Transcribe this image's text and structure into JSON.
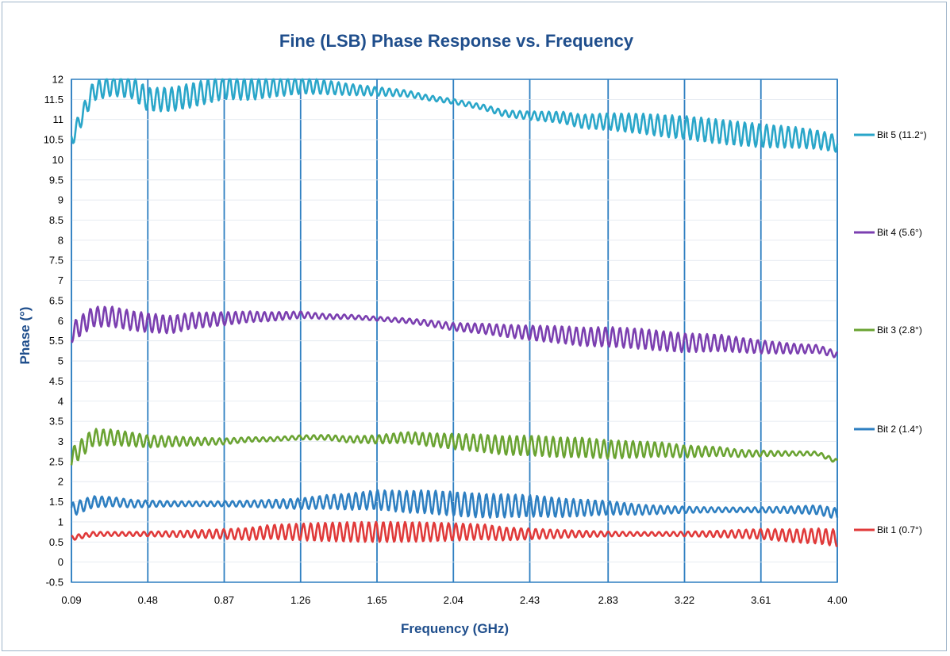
{
  "chart_data": {
    "type": "line",
    "title": "Fine (LSB) Phase Response vs. Frequency",
    "xlabel": "Frequency (GHz)",
    "ylabel": "Phase (°)",
    "xlim": [
      0.09,
      4.0
    ],
    "ylim": [
      -0.5,
      12
    ],
    "x_ticks": [
      "0.09",
      "0.48",
      "0.87",
      "1.26",
      "1.65",
      "2.04",
      "2.43",
      "2.83",
      "3.22",
      "3.61",
      "4.00"
    ],
    "y_ticks": [
      "-0.5",
      "0",
      "0.5",
      "1",
      "1.5",
      "2",
      "2.5",
      "3",
      "3.5",
      "4",
      "4.5",
      "5",
      "5.5",
      "6",
      "6.5",
      "7",
      "7.5",
      "8",
      "8.5",
      "9",
      "9.5",
      "10",
      "10.5",
      "11",
      "11.5",
      "12"
    ],
    "grid": "vertical",
    "legend_position": "right",
    "series": [
      {
        "name": "Bit 5 (11.2°)",
        "color": "#2aa6c9",
        "x": [
          0.09,
          0.2,
          0.3,
          0.4,
          0.48,
          0.6,
          0.7,
          0.87,
          1.0,
          1.1,
          1.26,
          1.4,
          1.5,
          1.65,
          1.8,
          1.9,
          2.04,
          2.2,
          2.3,
          2.43,
          2.6,
          2.7,
          2.83,
          3.0,
          3.1,
          3.22,
          3.4,
          3.5,
          3.61,
          3.8,
          3.9,
          4.0
        ],
        "y": [
          10.5,
          11.7,
          11.85,
          11.8,
          11.5,
          11.5,
          11.6,
          11.8,
          11.75,
          11.8,
          11.85,
          11.8,
          11.75,
          11.7,
          11.65,
          11.55,
          11.45,
          11.3,
          11.15,
          11.1,
          11.05,
          10.95,
          10.95,
          10.9,
          10.85,
          10.8,
          10.7,
          10.65,
          10.6,
          10.55,
          10.5,
          10.4
        ],
        "ripple": 0.3
      },
      {
        "name": "Bit 4 (5.6°)",
        "color": "#7b3fb0",
        "x": [
          0.09,
          0.2,
          0.3,
          0.4,
          0.48,
          0.6,
          0.7,
          0.87,
          1.0,
          1.1,
          1.26,
          1.4,
          1.5,
          1.65,
          1.8,
          1.9,
          2.04,
          2.2,
          2.3,
          2.43,
          2.6,
          2.7,
          2.83,
          3.0,
          3.1,
          3.22,
          3.4,
          3.5,
          3.61,
          3.8,
          3.9,
          4.0
        ],
        "y": [
          5.7,
          6.1,
          6.1,
          6.0,
          5.95,
          5.9,
          6.0,
          6.05,
          6.1,
          6.1,
          6.15,
          6.1,
          6.1,
          6.05,
          6.0,
          5.95,
          5.85,
          5.8,
          5.75,
          5.7,
          5.65,
          5.6,
          5.6,
          5.55,
          5.5,
          5.45,
          5.45,
          5.4,
          5.35,
          5.3,
          5.3,
          5.15
        ],
        "ripple": 0.25
      },
      {
        "name": "Bit 3 (2.8°)",
        "color": "#6aa332",
        "x": [
          0.09,
          0.2,
          0.3,
          0.4,
          0.48,
          0.6,
          0.7,
          0.87,
          1.0,
          1.1,
          1.26,
          1.4,
          1.5,
          1.65,
          1.8,
          1.9,
          2.04,
          2.2,
          2.3,
          2.43,
          2.6,
          2.7,
          2.83,
          3.0,
          3.1,
          3.22,
          3.4,
          3.5,
          3.61,
          3.8,
          3.9,
          4.0
        ],
        "y": [
          2.6,
          3.1,
          3.1,
          3.05,
          3.0,
          3.0,
          3.0,
          3.0,
          3.05,
          3.05,
          3.1,
          3.1,
          3.05,
          3.05,
          3.1,
          3.05,
          3.0,
          2.95,
          2.9,
          2.9,
          2.85,
          2.85,
          2.8,
          2.8,
          2.8,
          2.75,
          2.75,
          2.7,
          2.7,
          2.7,
          2.7,
          2.5
        ],
        "ripple": 0.25
      },
      {
        "name": "Bit 2 (1.4°)",
        "color": "#2e7fc1",
        "x": [
          0.09,
          0.2,
          0.3,
          0.4,
          0.48,
          0.6,
          0.7,
          0.87,
          1.0,
          1.1,
          1.26,
          1.4,
          1.5,
          1.65,
          1.8,
          1.9,
          2.04,
          2.2,
          2.3,
          2.43,
          2.6,
          2.7,
          2.83,
          3.0,
          3.1,
          3.22,
          3.4,
          3.5,
          3.61,
          3.8,
          3.9,
          4.0
        ],
        "y": [
          1.3,
          1.5,
          1.5,
          1.45,
          1.45,
          1.45,
          1.45,
          1.45,
          1.45,
          1.45,
          1.45,
          1.5,
          1.5,
          1.55,
          1.5,
          1.5,
          1.45,
          1.4,
          1.4,
          1.4,
          1.35,
          1.35,
          1.35,
          1.3,
          1.3,
          1.3,
          1.3,
          1.3,
          1.3,
          1.3,
          1.3,
          1.2
        ],
        "ripple": 0.3
      },
      {
        "name": "Bit 1 (0.7°)",
        "color": "#e03a3a",
        "x": [
          0.09,
          0.2,
          0.3,
          0.4,
          0.48,
          0.6,
          0.7,
          0.87,
          1.0,
          1.1,
          1.26,
          1.4,
          1.5,
          1.65,
          1.8,
          1.9,
          2.04,
          2.2,
          2.3,
          2.43,
          2.6,
          2.7,
          2.83,
          3.0,
          3.1,
          3.22,
          3.4,
          3.5,
          3.61,
          3.8,
          3.9,
          4.0
        ],
        "y": [
          0.6,
          0.7,
          0.7,
          0.7,
          0.7,
          0.7,
          0.7,
          0.7,
          0.7,
          0.75,
          0.75,
          0.75,
          0.75,
          0.75,
          0.75,
          0.75,
          0.75,
          0.75,
          0.7,
          0.7,
          0.7,
          0.7,
          0.7,
          0.7,
          0.7,
          0.7,
          0.7,
          0.7,
          0.7,
          0.65,
          0.65,
          0.6
        ],
        "ripple": 0.25
      }
    ]
  }
}
